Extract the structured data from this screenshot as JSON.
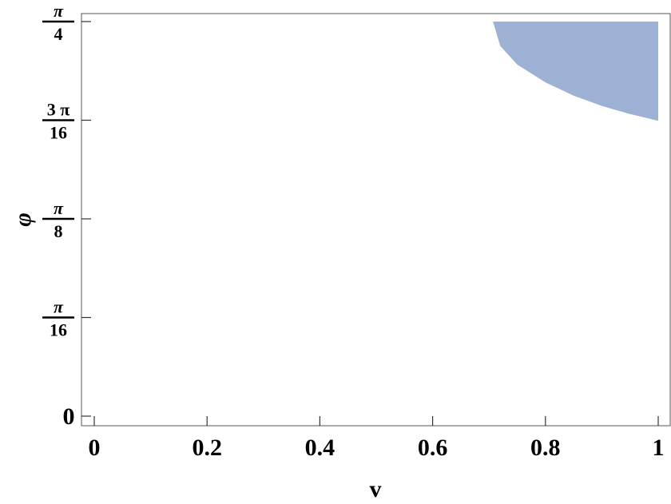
{
  "chart_data": {
    "type": "area",
    "title": "",
    "xlabel": "v",
    "ylabel": "φ",
    "xlim": [
      0,
      1
    ],
    "ylim": [
      0,
      0.7854
    ],
    "grid": false,
    "fill_color": "#9cb1d4",
    "x_ticks": [
      {
        "value": 0,
        "label": "0"
      },
      {
        "value": 0.2,
        "label": "0.2"
      },
      {
        "value": 0.4,
        "label": "0.4"
      },
      {
        "value": 0.6,
        "label": "0.6"
      },
      {
        "value": 0.8,
        "label": "0.8"
      },
      {
        "value": 1,
        "label": "1"
      }
    ],
    "y_ticks": [
      {
        "value": 0,
        "type": "plain",
        "label": "0"
      },
      {
        "value": 0.19635,
        "type": "frac",
        "num": "π",
        "den": "16"
      },
      {
        "value": 0.3927,
        "type": "frac",
        "num": "π",
        "den": "8"
      },
      {
        "value": 0.58905,
        "type": "frac",
        "num": "3 π",
        "den": "16"
      },
      {
        "value": 0.7854,
        "type": "frac",
        "num": "π",
        "den": "4"
      }
    ],
    "region": {
      "description": "φ ≥ lower boundary, φ ≤ π/4",
      "boundary_x": [
        0.707,
        0.72,
        0.75,
        0.8,
        0.85,
        0.9,
        0.95,
        1.0
      ],
      "boundary_y": [
        0.7854,
        0.7368,
        0.6997,
        0.6644,
        0.638,
        0.6175,
        0.6013,
        0.588
      ],
      "upper_y": 0.7854
    }
  }
}
